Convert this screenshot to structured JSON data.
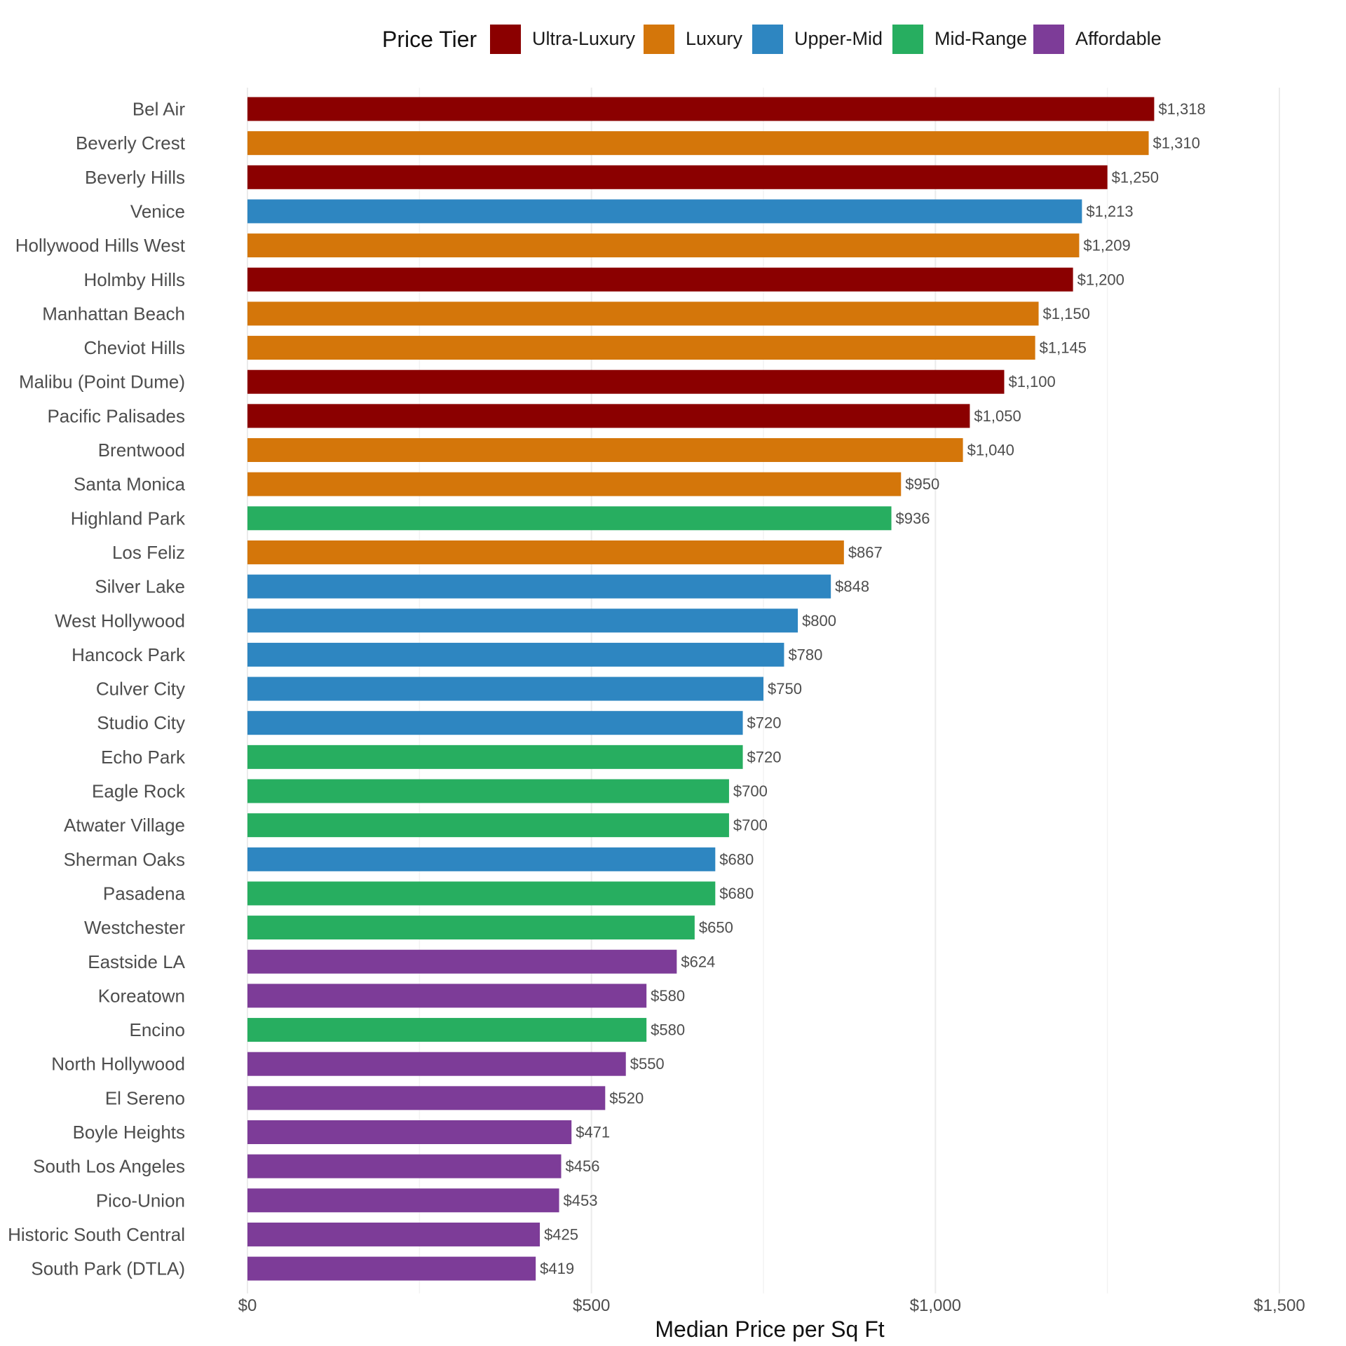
{
  "chart_data": {
    "type": "bar",
    "orientation": "horizontal",
    "title": "",
    "xlabel": "Median Price per Sq Ft",
    "ylabel": "",
    "xlim": [
      0,
      1500
    ],
    "x_ticks": [
      0,
      500,
      1000,
      1500
    ],
    "x_tick_labels": [
      "$0",
      "$500",
      "$1,000",
      "$1,500"
    ],
    "grid": true,
    "legend": {
      "title": "Price Tier",
      "position": "top",
      "entries": [
        {
          "name": "Ultra-Luxury",
          "color": "#8B0000"
        },
        {
          "name": "Luxury",
          "color": "#D4760A"
        },
        {
          "name": "Upper-Mid",
          "color": "#2E86C1"
        },
        {
          "name": "Mid-Range",
          "color": "#27AE60"
        },
        {
          "name": "Affordable",
          "color": "#7D3C98"
        }
      ]
    },
    "bars": [
      {
        "category": "Bel Air",
        "value": 1318,
        "label": "$1,318",
        "tier": "Ultra-Luxury"
      },
      {
        "category": "Beverly Crest",
        "value": 1310,
        "label": "$1,310",
        "tier": "Luxury"
      },
      {
        "category": "Beverly Hills",
        "value": 1250,
        "label": "$1,250",
        "tier": "Ultra-Luxury"
      },
      {
        "category": "Venice",
        "value": 1213,
        "label": "$1,213",
        "tier": "Upper-Mid"
      },
      {
        "category": "Hollywood Hills West",
        "value": 1209,
        "label": "$1,209",
        "tier": "Luxury"
      },
      {
        "category": "Holmby Hills",
        "value": 1200,
        "label": "$1,200",
        "tier": "Ultra-Luxury"
      },
      {
        "category": "Manhattan Beach",
        "value": 1150,
        "label": "$1,150",
        "tier": "Luxury"
      },
      {
        "category": "Cheviot Hills",
        "value": 1145,
        "label": "$1,145",
        "tier": "Luxury"
      },
      {
        "category": "Malibu (Point Dume)",
        "value": 1100,
        "label": "$1,100",
        "tier": "Ultra-Luxury"
      },
      {
        "category": "Pacific Palisades",
        "value": 1050,
        "label": "$1,050",
        "tier": "Ultra-Luxury"
      },
      {
        "category": "Brentwood",
        "value": 1040,
        "label": "$1,040",
        "tier": "Luxury"
      },
      {
        "category": "Santa Monica",
        "value": 950,
        "label": "$950",
        "tier": "Luxury"
      },
      {
        "category": "Highland Park",
        "value": 936,
        "label": "$936",
        "tier": "Mid-Range"
      },
      {
        "category": "Los Feliz",
        "value": 867,
        "label": "$867",
        "tier": "Luxury"
      },
      {
        "category": "Silver Lake",
        "value": 848,
        "label": "$848",
        "tier": "Upper-Mid"
      },
      {
        "category": "West Hollywood",
        "value": 800,
        "label": "$800",
        "tier": "Upper-Mid"
      },
      {
        "category": "Hancock Park",
        "value": 780,
        "label": "$780",
        "tier": "Upper-Mid"
      },
      {
        "category": "Culver City",
        "value": 750,
        "label": "$750",
        "tier": "Upper-Mid"
      },
      {
        "category": "Studio City",
        "value": 720,
        "label": "$720",
        "tier": "Upper-Mid"
      },
      {
        "category": "Echo Park",
        "value": 720,
        "label": "$720",
        "tier": "Mid-Range"
      },
      {
        "category": "Eagle Rock",
        "value": 700,
        "label": "$700",
        "tier": "Mid-Range"
      },
      {
        "category": "Atwater Village",
        "value": 700,
        "label": "$700",
        "tier": "Mid-Range"
      },
      {
        "category": "Sherman Oaks",
        "value": 680,
        "label": "$680",
        "tier": "Upper-Mid"
      },
      {
        "category": "Pasadena",
        "value": 680,
        "label": "$680",
        "tier": "Mid-Range"
      },
      {
        "category": "Westchester",
        "value": 650,
        "label": "$650",
        "tier": "Mid-Range"
      },
      {
        "category": "Eastside LA",
        "value": 624,
        "label": "$624",
        "tier": "Affordable"
      },
      {
        "category": "Koreatown",
        "value": 580,
        "label": "$580",
        "tier": "Affordable"
      },
      {
        "category": "Encino",
        "value": 580,
        "label": "$580",
        "tier": "Mid-Range"
      },
      {
        "category": "North Hollywood",
        "value": 550,
        "label": "$550",
        "tier": "Affordable"
      },
      {
        "category": "El Sereno",
        "value": 520,
        "label": "$520",
        "tier": "Affordable"
      },
      {
        "category": "Boyle Heights",
        "value": 471,
        "label": "$471",
        "tier": "Affordable"
      },
      {
        "category": "South Los Angeles",
        "value": 456,
        "label": "$456",
        "tier": "Affordable"
      },
      {
        "category": "Pico-Union",
        "value": 453,
        "label": "$453",
        "tier": "Affordable"
      },
      {
        "category": "Historic South Central",
        "value": 425,
        "label": "$425",
        "tier": "Affordable"
      },
      {
        "category": "South Park (DTLA)",
        "value": 419,
        "label": "$419",
        "tier": "Affordable"
      }
    ]
  }
}
